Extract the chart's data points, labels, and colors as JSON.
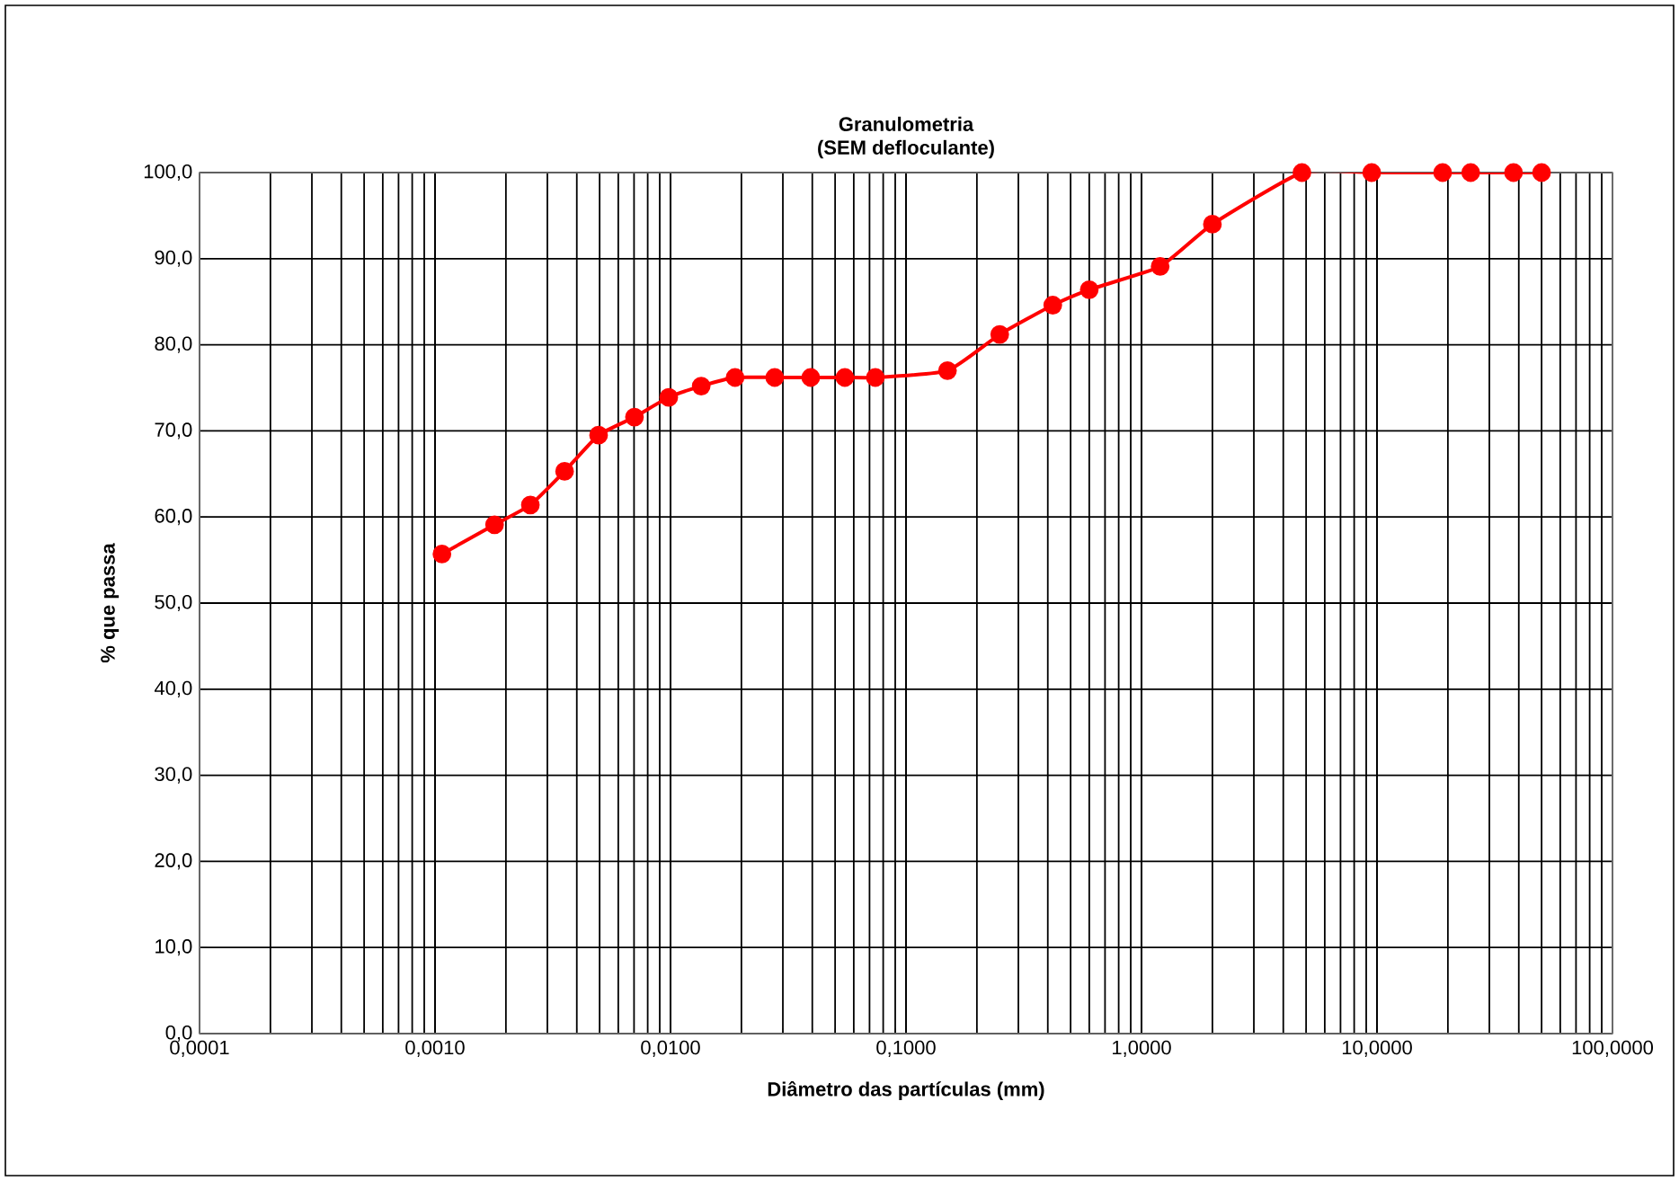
{
  "chart_data": {
    "type": "line",
    "title": "Granulometria",
    "subtitle": "(SEM defloculante)",
    "xlabel": "Diâmetro das partículas (mm)",
    "ylabel": "% que passa",
    "log": "x",
    "grid": true,
    "marker": "circle",
    "line_style": "solid",
    "xlim": [
      0.0001,
      100
    ],
    "ylim": [
      0,
      100
    ],
    "xticks": [
      {
        "value": 0.0001,
        "label": "0,0001"
      },
      {
        "value": 0.001,
        "label": "0,0010"
      },
      {
        "value": 0.01,
        "label": "0,0100"
      },
      {
        "value": 0.1,
        "label": "0,1000"
      },
      {
        "value": 1,
        "label": "1,0000"
      },
      {
        "value": 10,
        "label": "10,0000"
      },
      {
        "value": 100,
        "label": "100,0000"
      }
    ],
    "yticks": [
      {
        "value": 0,
        "label": "0,0"
      },
      {
        "value": 10,
        "label": "10,0"
      },
      {
        "value": 20,
        "label": "20,0"
      },
      {
        "value": 30,
        "label": "30,0"
      },
      {
        "value": 40,
        "label": "40,0"
      },
      {
        "value": 50,
        "label": "50,0"
      },
      {
        "value": 60,
        "label": "60,0"
      },
      {
        "value": 70,
        "label": "70,0"
      },
      {
        "value": 80,
        "label": "80,0"
      },
      {
        "value": 90,
        "label": "90,0"
      },
      {
        "value": 100,
        "label": "100,0"
      }
    ],
    "series": [
      {
        "color": "#ff0000",
        "x": [
          0.00107,
          0.00179,
          0.00254,
          0.00355,
          0.00495,
          0.00703,
          0.00983,
          0.0135,
          0.0188,
          0.0277,
          0.0394,
          0.055,
          0.0741,
          0.15,
          0.25,
          0.42,
          0.6,
          1.2,
          2.0,
          4.8,
          9.5,
          19,
          25,
          38,
          50
        ],
        "values": [
          55.7,
          59.1,
          61.4,
          65.3,
          69.5,
          71.6,
          73.9,
          75.2,
          76.2,
          76.2,
          76.2,
          76.2,
          76.2,
          77.0,
          81.2,
          84.6,
          86.4,
          89.1,
          94.0,
          100,
          100,
          100,
          100,
          100,
          100
        ]
      }
    ]
  }
}
